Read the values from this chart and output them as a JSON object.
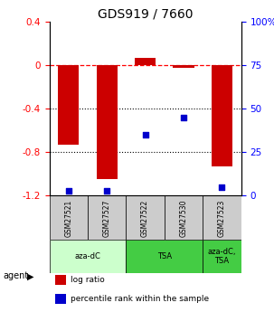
{
  "title": "GDS919 / 7660",
  "samples": [
    "GSM27521",
    "GSM27527",
    "GSM27522",
    "GSM27530",
    "GSM27523"
  ],
  "log_ratio": [
    -0.73,
    -1.05,
    0.07,
    -0.02,
    -0.93
  ],
  "percentile_rank": [
    3,
    3,
    35,
    45,
    5
  ],
  "ylim_left": [
    -1.2,
    0.4
  ],
  "ylim_right": [
    0,
    100
  ],
  "yticks_left": [
    -1.2,
    -0.8,
    -0.4,
    0.0,
    0.4
  ],
  "yticks_right": [
    0,
    25,
    50,
    75,
    100
  ],
  "ytick_labels_left": [
    "-1.2",
    "-0.8",
    "-0.4",
    "0",
    "0.4"
  ],
  "ytick_labels_right": [
    "0",
    "25",
    "50",
    "75",
    "100%"
  ],
  "hlines": [
    0.0,
    -0.4,
    -0.8
  ],
  "hline_styles": [
    "dashed",
    "dotted",
    "dotted"
  ],
  "hline_colors": [
    "red",
    "black",
    "black"
  ],
  "bar_color": "#cc0000",
  "dot_color": "#0000cc",
  "bar_width": 0.55,
  "group_colors": [
    "#ccffcc",
    "#44cc44",
    "#44cc44"
  ],
  "group_labels": [
    "aza-dC",
    "TSA",
    "aza-dC,\nTSA"
  ],
  "group_ranges": [
    [
      0,
      2
    ],
    [
      2,
      4
    ],
    [
      4,
      5
    ]
  ],
  "legend_items": [
    {
      "color": "#cc0000",
      "label": "log ratio"
    },
    {
      "color": "#0000cc",
      "label": "percentile rank within the sample"
    }
  ],
  "agent_label": "agent",
  "background_color": "#ffffff",
  "title_fontsize": 10,
  "tick_fontsize": 7.5,
  "sample_cell_color": "#cccccc"
}
